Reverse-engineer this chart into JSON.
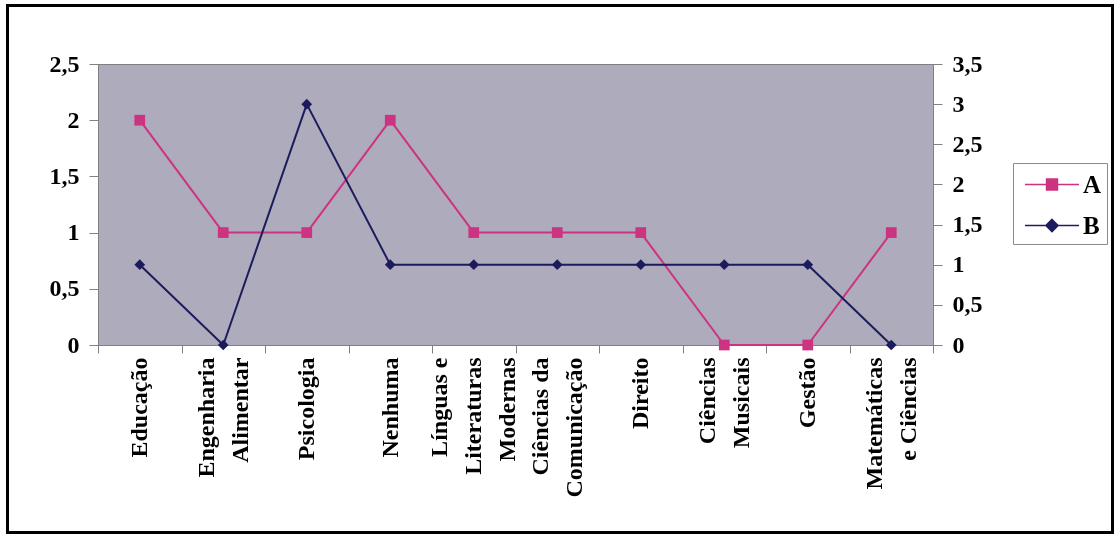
{
  "chart_data": {
    "type": "line",
    "categories": [
      "Educação",
      "Engenharia Alimentar",
      "Psicologia",
      "Nenhuma",
      "Línguas e Literaturas Modernas",
      "Ciências da Comunicação",
      "Direito",
      "Ciências Musicais",
      "Gestão",
      "Matemáticas e Ciências"
    ],
    "series": [
      {
        "name": "A",
        "color": "#cc3380",
        "marker": "square",
        "values": [
          2,
          1,
          1,
          2,
          1,
          1,
          1,
          0,
          0,
          1
        ]
      },
      {
        "name": "B",
        "color": "#1c1c5c",
        "marker": "diamond",
        "axis": "y2",
        "values": [
          1,
          0,
          3,
          1,
          1,
          1,
          1,
          1,
          1,
          0
        ]
      }
    ],
    "ylim": [
      0,
      2.5
    ],
    "yticks": [
      0,
      {
        "value": 0.5,
        "label": "0,5"
      },
      1,
      {
        "value": 1.5,
        "label": "1,5"
      },
      2,
      {
        "value": 2.5,
        "label": "2,5"
      }
    ],
    "y2lim": [
      0,
      3.5
    ],
    "y2ticks": [
      0,
      {
        "value": 0.5,
        "label": "0,5"
      },
      1,
      {
        "value": 1.5,
        "label": "1,5"
      },
      2,
      {
        "value": 2.5,
        "label": "2,5"
      },
      3,
      {
        "value": 3.5,
        "label": "3,5"
      }
    ],
    "legend": "right"
  }
}
